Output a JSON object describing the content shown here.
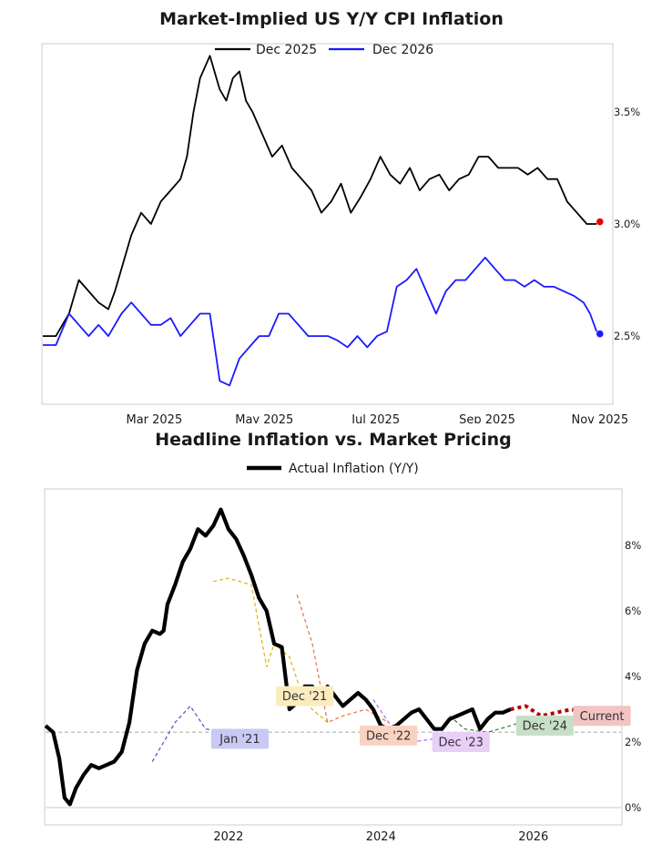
{
  "colors": {
    "black": "#000000",
    "blue": "#1a1aff",
    "red": "#e8000b",
    "frame": "#cccccc",
    "refline": "#bbbbbb",
    "yellow": "#e6b000",
    "orange": "#e8723a",
    "purple": "#b265e6",
    "green": "#3a7a3a",
    "darkred": "#b30000",
    "navy": "#4d4dd6"
  },
  "chart_data": [
    {
      "type": "line",
      "title": "Market-Implied US Y/Y CPI Inflation",
      "legend": [
        "Dec 2025",
        "Dec 2026"
      ],
      "x_ticks": [
        "Mar 2025",
        "May 2025",
        "Jul 2025",
        "Sep 2025",
        "Nov 2025"
      ],
      "x_tick_positions": [
        2025.15,
        2025.318,
        2025.488,
        2025.658,
        2025.83
      ],
      "xlim": [
        2024.98,
        2025.84
      ],
      "ylim": [
        2.2,
        3.8
      ],
      "y_ticks": [
        "2.5%",
        "3.0%",
        "3.5%"
      ],
      "y_tick_values": [
        2.5,
        3.0,
        3.5
      ],
      "series": [
        {
          "name": "Dec 2025",
          "color": "#000000",
          "x": [
            2024.98,
            2025.0,
            2025.02,
            2025.035,
            2025.05,
            2025.065,
            2025.08,
            2025.09,
            2025.1,
            2025.115,
            2025.13,
            2025.145,
            2025.16,
            2025.175,
            2025.19,
            2025.2,
            2025.21,
            2025.22,
            2025.235,
            2025.25,
            2025.26,
            2025.27,
            2025.28,
            2025.29,
            2025.3,
            2025.315,
            2025.33,
            2025.345,
            2025.36,
            2025.375,
            2025.39,
            2025.405,
            2025.42,
            2025.435,
            2025.45,
            2025.465,
            2025.48,
            2025.495,
            2025.51,
            2025.525,
            2025.54,
            2025.555,
            2025.57,
            2025.585,
            2025.6,
            2025.615,
            2025.63,
            2025.645,
            2025.66,
            2025.675,
            2025.69,
            2025.705,
            2025.72,
            2025.735,
            2025.75,
            2025.765,
            2025.78,
            2025.795,
            2025.81,
            2025.825
          ],
          "values": [
            2.5,
            2.5,
            2.6,
            2.75,
            2.7,
            2.65,
            2.62,
            2.7,
            2.8,
            2.95,
            3.05,
            3.0,
            3.1,
            3.15,
            3.2,
            3.3,
            3.5,
            3.65,
            3.75,
            3.6,
            3.55,
            3.65,
            3.68,
            3.55,
            3.5,
            3.4,
            3.3,
            3.35,
            3.25,
            3.2,
            3.15,
            3.05,
            3.1,
            3.18,
            3.05,
            3.12,
            3.2,
            3.3,
            3.22,
            3.18,
            3.25,
            3.15,
            3.2,
            3.22,
            3.15,
            3.2,
            3.22,
            3.3,
            3.3,
            3.25,
            3.25,
            3.25,
            3.22,
            3.25,
            3.2,
            3.2,
            3.1,
            3.05,
            3.0,
            3.0
          ]
        },
        {
          "name": "Dec 2026",
          "color": "#1a1aff",
          "x": [
            2024.98,
            2025.0,
            2025.02,
            2025.035,
            2025.05,
            2025.065,
            2025.08,
            2025.1,
            2025.115,
            2025.13,
            2025.145,
            2025.16,
            2025.175,
            2025.19,
            2025.205,
            2025.22,
            2025.235,
            2025.25,
            2025.265,
            2025.28,
            2025.295,
            2025.31,
            2025.325,
            2025.34,
            2025.355,
            2025.37,
            2025.385,
            2025.4,
            2025.415,
            2025.43,
            2025.445,
            2025.46,
            2025.475,
            2025.49,
            2025.505,
            2025.52,
            2025.535,
            2025.55,
            2025.565,
            2025.58,
            2025.595,
            2025.61,
            2025.625,
            2025.64,
            2025.655,
            2025.67,
            2025.685,
            2025.7,
            2025.715,
            2025.73,
            2025.745,
            2025.76,
            2025.775,
            2025.79,
            2025.805,
            2025.815,
            2025.825
          ],
          "values": [
            2.46,
            2.46,
            2.6,
            2.55,
            2.5,
            2.55,
            2.5,
            2.6,
            2.65,
            2.6,
            2.55,
            2.55,
            2.58,
            2.5,
            2.55,
            2.6,
            2.6,
            2.3,
            2.28,
            2.4,
            2.45,
            2.5,
            2.5,
            2.6,
            2.6,
            2.55,
            2.5,
            2.5,
            2.5,
            2.48,
            2.45,
            2.5,
            2.45,
            2.5,
            2.52,
            2.72,
            2.75,
            2.8,
            2.7,
            2.6,
            2.7,
            2.75,
            2.75,
            2.8,
            2.85,
            2.8,
            2.75,
            2.75,
            2.72,
            2.75,
            2.72,
            2.72,
            2.7,
            2.68,
            2.65,
            2.6,
            2.52
          ]
        }
      ],
      "end_markers": [
        {
          "series": "Dec 2025",
          "x": 2025.83,
          "value": 3.01,
          "color": "#e8000b"
        },
        {
          "series": "Dec 2026",
          "x": 2025.83,
          "value": 2.51,
          "color": "#1a1aff"
        }
      ]
    },
    {
      "type": "line",
      "title": "Headline Inflation vs. Market Pricing",
      "legend": [
        "Actual Inflation (Y/Y)"
      ],
      "x_ticks": [
        "2022",
        "2024",
        "2026"
      ],
      "x_tick_values": [
        2022,
        2024,
        2026
      ],
      "xlim": [
        2019.6,
        2027.15
      ],
      "ylim": [
        -0.5,
        9.7
      ],
      "y_ticks": [
        "0%",
        "2%",
        "4%",
        "6%",
        "8%"
      ],
      "y_tick_values": [
        0,
        2,
        4,
        6,
        8
      ],
      "reference_line": 2.3,
      "series": [
        {
          "name": "Actual Inflation (Y/Y)",
          "color": "#000000",
          "x": [
            2019.6,
            2019.7,
            2019.78,
            2019.85,
            2019.92,
            2020.0,
            2020.1,
            2020.2,
            2020.3,
            2020.4,
            2020.5,
            2020.6,
            2020.7,
            2020.8,
            2020.9,
            2021.0,
            2021.1,
            2021.15,
            2021.2,
            2021.3,
            2021.4,
            2021.5,
            2021.6,
            2021.7,
            2021.8,
            2021.9,
            2022.0,
            2022.1,
            2022.2,
            2022.3,
            2022.4,
            2022.5,
            2022.6,
            2022.7,
            2022.8,
            2022.9,
            2023.0,
            2023.1,
            2023.2,
            2023.3,
            2023.4,
            2023.5,
            2023.6,
            2023.7,
            2023.8,
            2023.9,
            2024.0,
            2024.1,
            2024.2,
            2024.3,
            2024.4,
            2024.5,
            2024.6,
            2024.7,
            2024.8,
            2024.9,
            2025.0,
            2025.1,
            2025.2,
            2025.3,
            2025.4,
            2025.5,
            2025.6,
            2025.7
          ],
          "values": [
            2.5,
            2.3,
            1.5,
            0.3,
            0.1,
            0.6,
            1.0,
            1.3,
            1.2,
            1.3,
            1.4,
            1.7,
            2.6,
            4.2,
            5.0,
            5.4,
            5.3,
            5.4,
            6.2,
            6.8,
            7.5,
            7.9,
            8.5,
            8.3,
            8.6,
            9.1,
            8.5,
            8.2,
            7.7,
            7.1,
            6.4,
            6.0,
            5.0,
            4.9,
            3.0,
            3.2,
            3.7,
            3.7,
            3.2,
            3.7,
            3.4,
            3.1,
            3.3,
            3.5,
            3.3,
            3.0,
            2.5,
            2.4,
            2.5,
            2.7,
            2.9,
            3.0,
            2.7,
            2.4,
            2.4,
            2.7,
            2.8,
            2.9,
            3.0,
            2.4,
            2.7,
            2.9,
            2.9,
            3.0
          ]
        },
        {
          "name": "Jan '21",
          "color": "#4d4dd6",
          "dashed": true,
          "x": [
            2021.0,
            2021.3,
            2021.5,
            2021.7,
            2022.0
          ],
          "values": [
            1.4,
            2.6,
            3.1,
            2.4,
            2.3
          ]
        },
        {
          "name": "Dec '21",
          "color": "#e6b000",
          "dashed": true,
          "x": [
            2021.8,
            2022.0,
            2022.3,
            2022.5,
            2022.6,
            2022.8,
            2023.0,
            2023.3
          ],
          "values": [
            6.9,
            7.0,
            6.8,
            4.3,
            5.0,
            4.6,
            3.2,
            2.6
          ]
        },
        {
          "name": "Dec '22",
          "color": "#e8723a",
          "dashed": true,
          "x": [
            2022.9,
            2023.1,
            2023.3,
            2023.5,
            2023.8,
            2024.1
          ],
          "values": [
            6.5,
            5.0,
            2.6,
            2.8,
            3.0,
            2.6
          ]
        },
        {
          "name": "Dec '23",
          "color": "#b265e6",
          "dashed": true,
          "x": [
            2023.9,
            2024.1,
            2024.4,
            2024.7,
            2025.0
          ],
          "values": [
            3.3,
            2.6,
            2.0,
            2.1,
            2.3
          ]
        },
        {
          "name": "Dec '24",
          "color": "#3a7a3a",
          "dashed": true,
          "x": [
            2024.9,
            2025.1,
            2025.4,
            2025.7,
            2025.95
          ],
          "values": [
            2.8,
            2.4,
            2.3,
            2.5,
            2.7
          ]
        },
        {
          "name": "Current",
          "color": "#b30000",
          "dashed": true,
          "x": [
            2025.7,
            2025.9,
            2026.1,
            2026.3,
            2026.5,
            2026.7,
            2026.9
          ],
          "values": [
            3.0,
            3.1,
            2.8,
            2.9,
            3.0,
            2.9,
            2.8
          ]
        }
      ],
      "annotations": [
        {
          "text": "Jan '21",
          "x": 2022.15,
          "y": 2.1,
          "fill": "#c9c9f5"
        },
        {
          "text": "Dec '21",
          "x": 2023.0,
          "y": 3.4,
          "fill": "#fbecc0"
        },
        {
          "text": "Dec '22",
          "x": 2024.1,
          "y": 2.2,
          "fill": "#f9d3c2"
        },
        {
          "text": "Dec '23",
          "x": 2025.05,
          "y": 2.0,
          "fill": "#e8cff7"
        },
        {
          "text": "Dec '24",
          "x": 2026.15,
          "y": 2.5,
          "fill": "#c7dfc7"
        },
        {
          "text": "Current",
          "x": 2026.9,
          "y": 2.8,
          "fill": "#f3c4c4"
        }
      ]
    }
  ]
}
